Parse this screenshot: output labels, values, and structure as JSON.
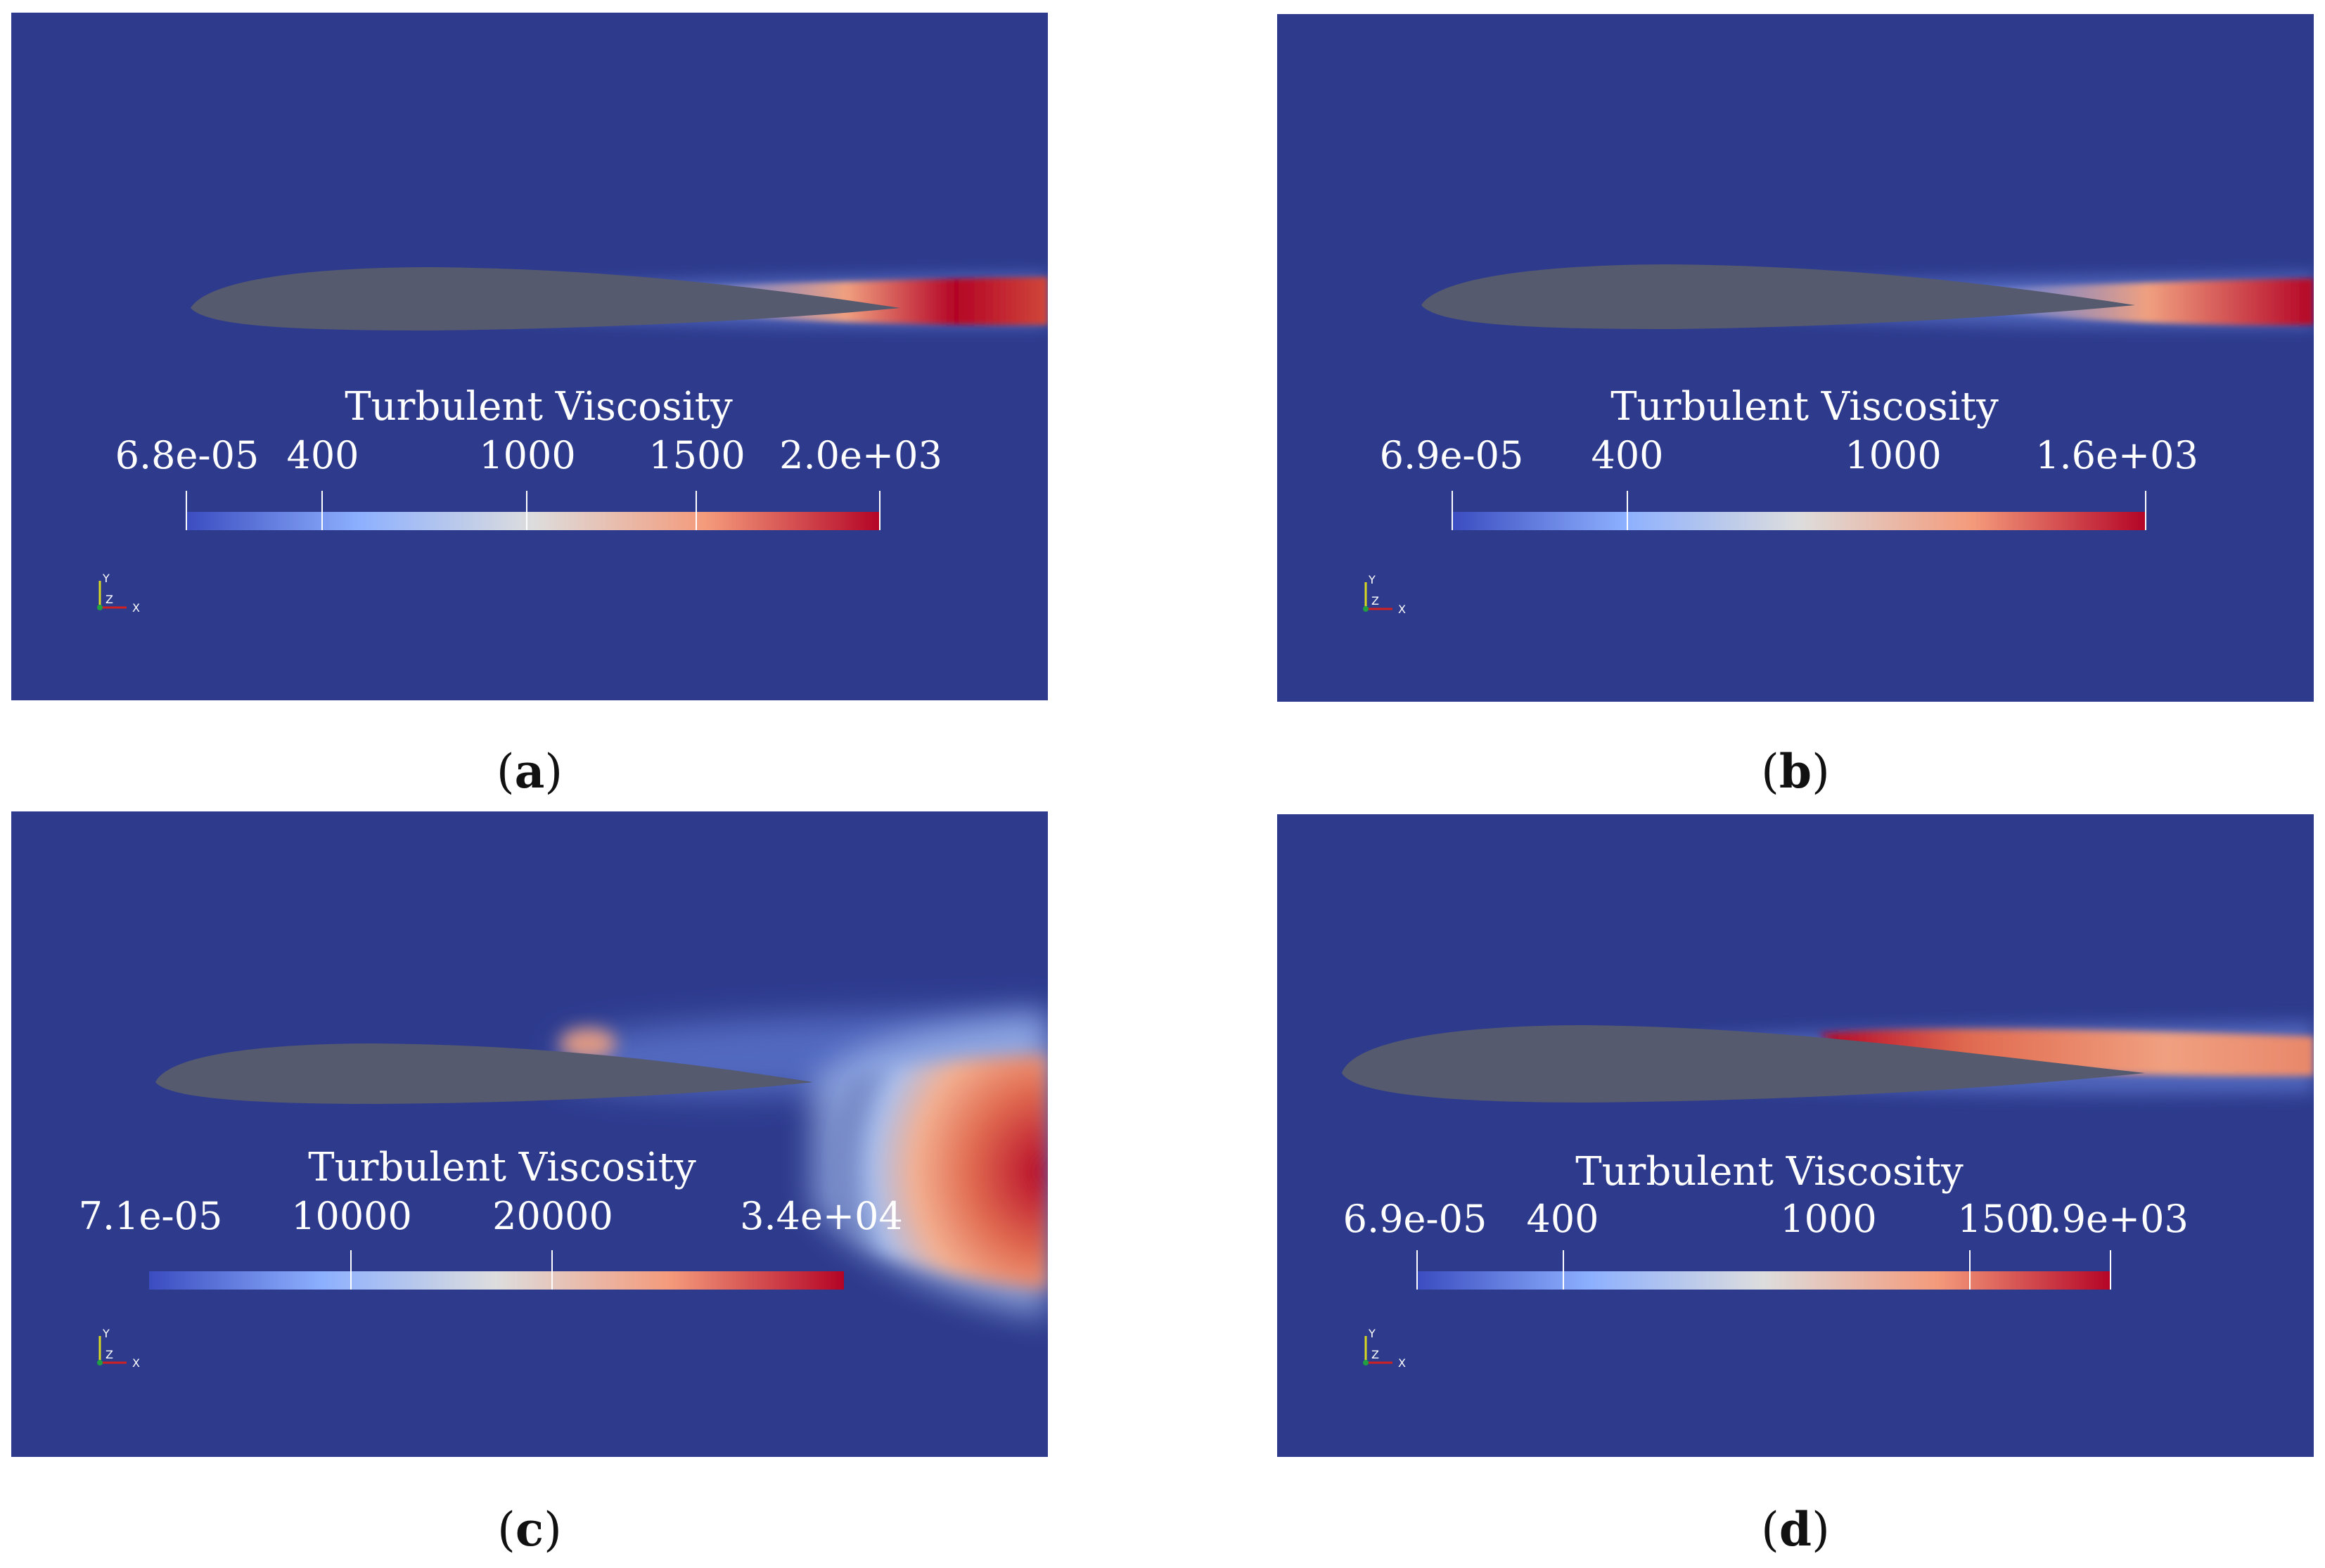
{
  "colors": {
    "background": "#2e3b8d",
    "airfoil": "#555a6e",
    "colormap": [
      "#3b4cc0",
      "#8db0fe",
      "#dddddd",
      "#f49a7b",
      "#b40426"
    ]
  },
  "panels": [
    {
      "caption": "a",
      "colorbar": {
        "title": "Turbulent Viscosity",
        "range": [
          6.8e-05,
          2000
        ],
        "labels": [
          {
            "text": "6.8e-05",
            "value": 6.8e-05
          },
          {
            "text": "400",
            "value": 400
          },
          {
            "text": "1000",
            "value": 1000
          },
          {
            "text": "1500",
            "value": 1500
          },
          {
            "text": "2.0e+03",
            "value": 2000
          }
        ]
      },
      "axes": {
        "y": "Y",
        "z": "Z",
        "x": "X"
      }
    },
    {
      "caption": "b",
      "colorbar": {
        "title": "Turbulent Viscosity",
        "range": [
          6.9e-05,
          1600
        ],
        "labels": [
          {
            "text": "6.9e-05",
            "value": 6.9e-05
          },
          {
            "text": "400",
            "value": 400
          },
          {
            "text": "1000",
            "value": 1000
          },
          {
            "text": "1.6e+03",
            "value": 1600
          }
        ]
      },
      "axes": {
        "y": "Y",
        "z": "Z",
        "x": "X"
      }
    },
    {
      "caption": "c",
      "colorbar": {
        "title": "Turbulent Viscosity",
        "range": [
          7.1e-05,
          34000
        ],
        "labels": [
          {
            "text": "7.1e-05",
            "value": 7.1e-05
          },
          {
            "text": "10000",
            "value": 10000
          },
          {
            "text": "20000",
            "value": 20000
          },
          {
            "text": "3.4e+04",
            "value": 34000
          }
        ]
      },
      "axes": {
        "y": "Y",
        "z": "Z",
        "x": "X"
      }
    },
    {
      "caption": "d",
      "colorbar": {
        "title": "Turbulent Viscosity",
        "range": [
          6.9e-05,
          1900
        ],
        "labels": [
          {
            "text": "6.9e-05",
            "value": 6.9e-05
          },
          {
            "text": "400",
            "value": 400
          },
          {
            "text": "1000",
            "value": 1000
          },
          {
            "text": "1500",
            "value": 1500
          },
          {
            "text": "1.9e+03",
            "value": 1900
          }
        ]
      },
      "axes": {
        "y": "Y",
        "z": "Z",
        "x": "X"
      }
    }
  ]
}
